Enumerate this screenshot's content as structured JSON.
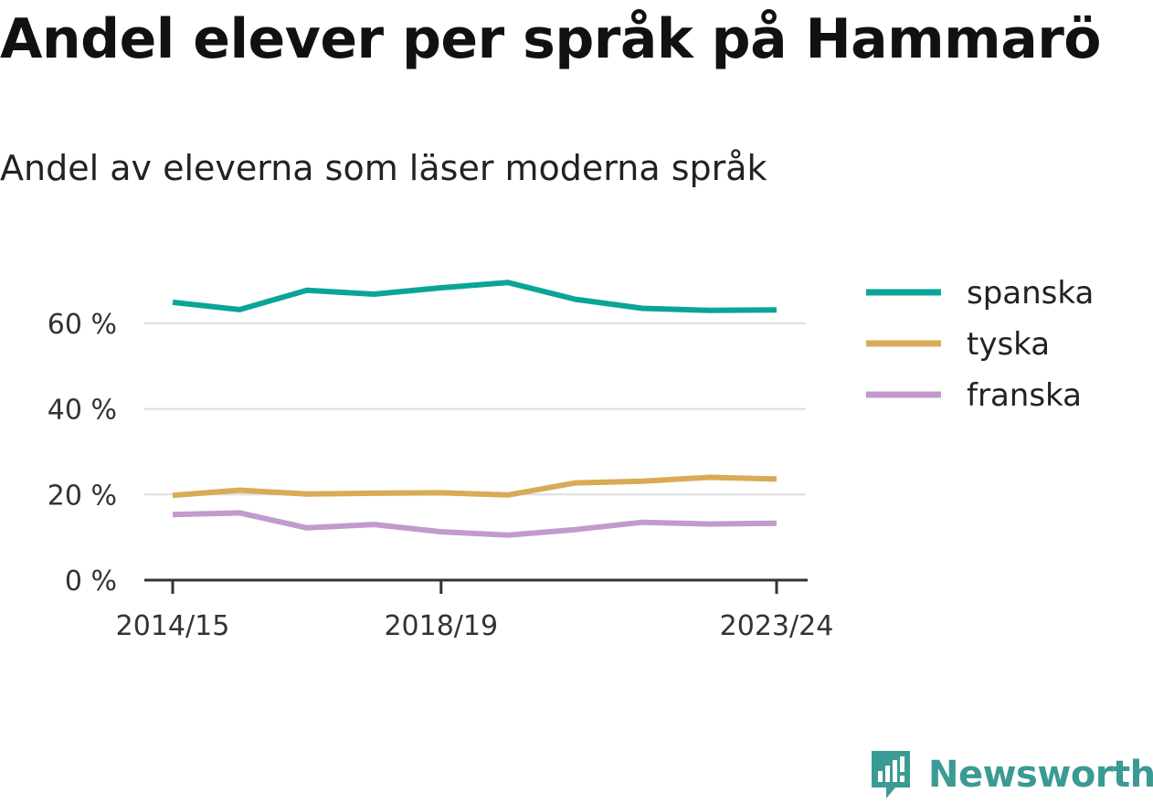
{
  "title": "Andel elever per språk på Hammarö",
  "subtitle": "Andel av eleverna som läser moderna språk",
  "brand": {
    "name": "Newsworthy",
    "icon": "newsworthy-logo-icon",
    "color": "#3a9a94"
  },
  "chart_data": {
    "type": "line",
    "x": [
      "2014/15",
      "2015/16",
      "2016/17",
      "2017/18",
      "2018/19",
      "2019/20",
      "2020/21",
      "2021/22",
      "2022/23",
      "2023/24"
    ],
    "xticks": [
      "2014/15",
      "2018/19",
      "2023/24"
    ],
    "yticks": [
      0,
      20,
      40,
      60
    ],
    "ytick_labels": [
      "0 %",
      "20 %",
      "40 %",
      "60 %"
    ],
    "ylim": [
      0,
      70
    ],
    "grid": true,
    "legend_position": "right",
    "series": [
      {
        "name": "spanska",
        "color": "#0aa596",
        "values": [
          64.9,
          63.2,
          67.7,
          66.8,
          68.3,
          69.5,
          65.6,
          63.5,
          63.0,
          63.1
        ]
      },
      {
        "name": "tyska",
        "color": "#d9ab56",
        "values": [
          19.8,
          21.0,
          20.1,
          20.3,
          20.4,
          19.9,
          22.7,
          23.1,
          24.0,
          23.6
        ]
      },
      {
        "name": "franska",
        "color": "#c39acb",
        "values": [
          15.3,
          15.7,
          12.2,
          13.0,
          11.3,
          10.5,
          11.8,
          13.5,
          13.1,
          13.3
        ]
      }
    ]
  }
}
